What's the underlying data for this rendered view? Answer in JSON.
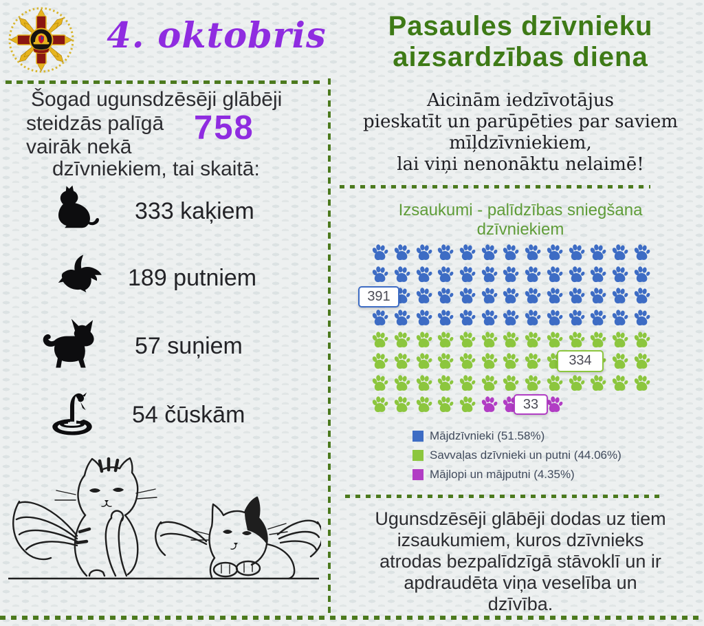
{
  "colors": {
    "accent_purple": "#8f2ce0",
    "heading_green": "#3e7a16",
    "subtitle_green": "#5f9c38",
    "divider_green": "#4c7a1e",
    "paw_blue": "#3d6cc4",
    "paw_green": "#8cc63e",
    "paw_purple": "#b13dc4"
  },
  "left": {
    "date_title": "4. oktobris",
    "intro": {
      "line1": "Šogad ugunsdzēsēji glābēji",
      "line2": "steidzās palīgā",
      "line3": "vairāk nekā",
      "big_number": "758",
      "line4": "dzīvniekiem, tai skaitā:"
    },
    "animals": [
      {
        "icon": "cat-icon",
        "label": "333 kaķiem"
      },
      {
        "icon": "bird-icon",
        "label": "189 putniem"
      },
      {
        "icon": "dog-icon",
        "label": "57 suņiem"
      },
      {
        "icon": "snake-icon",
        "label": "54 čūskām"
      }
    ]
  },
  "right": {
    "heading_line1": "Pasaules dzīvnieku",
    "heading_line2": "aizsardzības diena",
    "callout_lines": [
      "Aicinām iedzīvotājus",
      "pieskatīt un parūpēties par saviem",
      "mīļdzīvniekiem,",
      "lai viņi nenonāktu nelaimē!"
    ],
    "chart_title_line1": "Izsaukumi - palīdzības sniegšana",
    "chart_title_line2": "dzīvniekiem",
    "footer_lines": [
      "Ugunsdzēsēji glābēji dodas uz tiem",
      "izsaukumiem, kuros dzīvnieks",
      "atrodas bezpalīdzīgā stāvoklī un ir",
      "apdraudēta viņa veselība un",
      "dzīvība."
    ]
  },
  "chart_data": {
    "type": "pictograph",
    "title": "Izsaukumi - palīdzības sniegšana dzīvniekiem",
    "icon": "paw-print",
    "columns": 13,
    "icons_total": 100,
    "total": 758,
    "series": [
      {
        "name": "Mājdzīvnieki",
        "value": 391,
        "percent": 51.58,
        "icon_count": 52,
        "color": "#3d6cc4",
        "tooltip": "391"
      },
      {
        "name": "Savvaļas dzīvnieki un putni",
        "value": 334,
        "percent": 44.06,
        "icon_count": 44,
        "color": "#8cc63e",
        "tooltip": "334"
      },
      {
        "name": "Mājlopi un mājputni",
        "value": 33,
        "percent": 4.35,
        "icon_count": 4,
        "color": "#b13dc4",
        "tooltip": "33"
      }
    ],
    "legend_position": "bottom-left"
  },
  "legend": [
    {
      "label": "Mājdzīvnieki (51.58%)",
      "color": "#3d6cc4"
    },
    {
      "label": "Savvaļas dzīvnieki un putni (44.06%)",
      "color": "#8cc63e"
    },
    {
      "label": "Mājlopi un mājputni (4.35%)",
      "color": "#b13dc4"
    }
  ]
}
